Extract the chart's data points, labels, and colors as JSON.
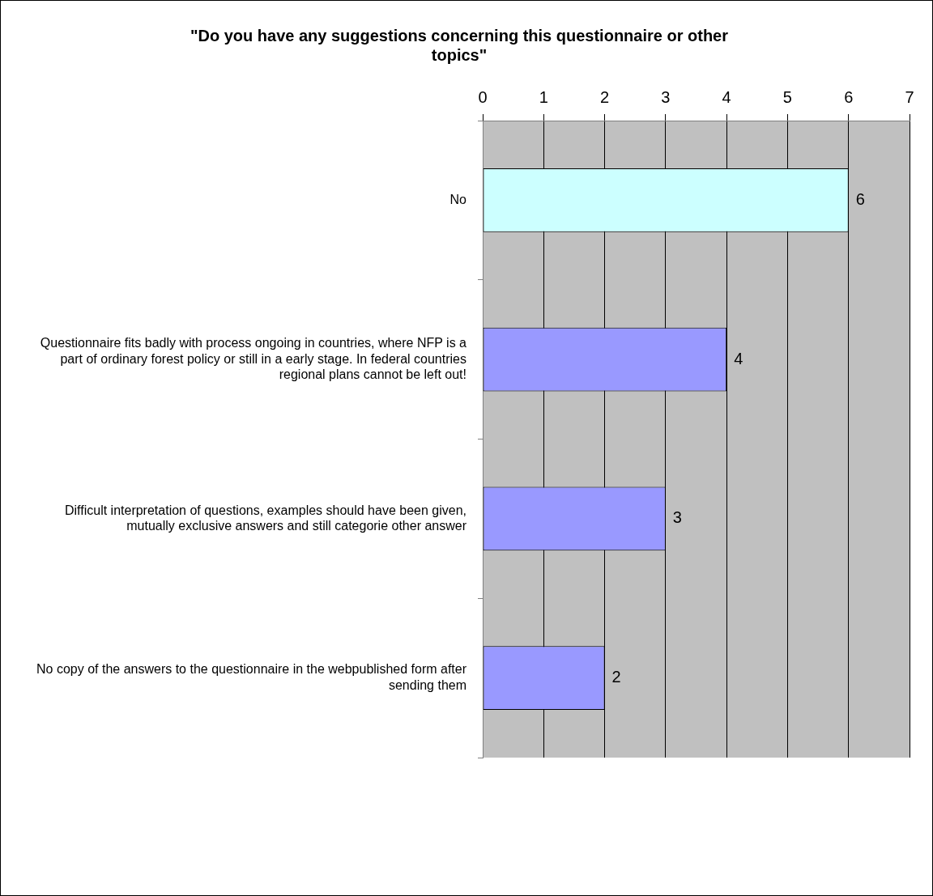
{
  "chart_data": {
    "type": "bar",
    "orientation": "horizontal",
    "title": "\"Do you have any suggestions concerning this questionnaire or other topics\"",
    "categories": [
      "No",
      "Questionnaire fits badly with process ongoing in countries, where NFP is a part of ordinary forest policy or still in a early stage. In federal countries regional plans cannot be left out!",
      "Difficult interpretation of questions, examples should have been given, mutually exclusive answers and still categorie other answer",
      "No copy of the answers to the questionnaire in the webpublished form after sending them"
    ],
    "values": [
      6,
      4,
      3,
      2
    ],
    "colors": [
      "#ccffff",
      "#9999ff",
      "#9999ff",
      "#9999ff"
    ],
    "xlim": [
      0,
      7
    ],
    "xticks": [
      0,
      1,
      2,
      3,
      4,
      5,
      6,
      7
    ],
    "grid": "x",
    "data_labels": true,
    "legend": false
  }
}
